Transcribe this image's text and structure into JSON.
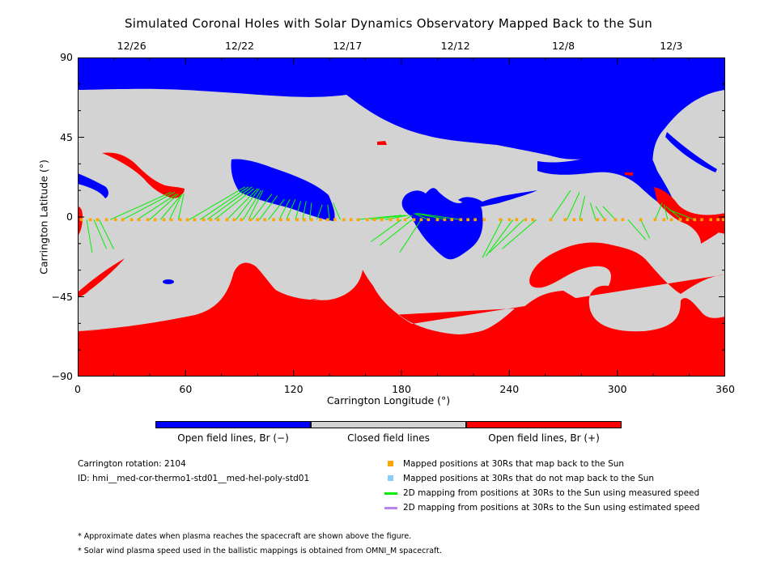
{
  "chart_data": {
    "type": "map",
    "title": "Simulated Coronal Holes with Solar Dynamics Observatory Mapped Back to the Sun",
    "xlabel": "Carrington Longitude (°)",
    "ylabel": "Carrington Latitude (°)",
    "xlim": [
      0,
      360
    ],
    "ylim": [
      -90,
      90
    ],
    "x_ticks": [
      "0",
      "60",
      "120",
      "180",
      "240",
      "300",
      "360"
    ],
    "y_ticks": [
      "90",
      "45",
      "0",
      "−45",
      "−90"
    ],
    "top_dates": [
      {
        "label": "12/26",
        "lon": 30
      },
      {
        "label": "12/22",
        "lon": 90
      },
      {
        "label": "12/17",
        "lon": 150
      },
      {
        "label": "12/12",
        "lon": 210
      },
      {
        "label": "12/8",
        "lon": 270
      },
      {
        "label": "12/3",
        "lon": 330
      }
    ],
    "colorbar": [
      {
        "label": "Open field lines, Br (−)",
        "color": "#0000ff"
      },
      {
        "label": "Closed field lines",
        "color": "#d3d3d3"
      },
      {
        "label": "Open field lines, Br (+)",
        "color": "#ff0000"
      }
    ],
    "mapped_points_lon": [
      2,
      7,
      11,
      16,
      21,
      25,
      30,
      34,
      39,
      43,
      48,
      52,
      57,
      61,
      65,
      70,
      74,
      78,
      83,
      87,
      91,
      96,
      100,
      104,
      109,
      113,
      117,
      122,
      126,
      130,
      135,
      139,
      143,
      148,
      152,
      156,
      161,
      165,
      169,
      174,
      178,
      182,
      187,
      191,
      195,
      200,
      204,
      208,
      213,
      217,
      221,
      226,
      235,
      240,
      244,
      249,
      253,
      263,
      271,
      276,
      280,
      289,
      293,
      299,
      303,
      313,
      321,
      326,
      330,
      335,
      339,
      343,
      347,
      352,
      356,
      359
    ],
    "mapped_points_lat": -1.5,
    "mapping_lines": [
      {
        "from": 5,
        "to": [
          8,
          -20
        ]
      },
      {
        "from": 9,
        "to": [
          16,
          -18
        ]
      },
      {
        "from": 12,
        "to": [
          20,
          -18
        ]
      },
      {
        "from": 18,
        "to": [
          52,
          14
        ]
      },
      {
        "from": 25,
        "to": [
          54,
          14
        ]
      },
      {
        "from": 33,
        "to": [
          55,
          13
        ]
      },
      {
        "from": 40,
        "to": [
          56,
          13
        ]
      },
      {
        "from": 46,
        "to": [
          58,
          13
        ]
      },
      {
        "from": 51,
        "to": [
          58,
          13
        ]
      },
      {
        "from": 56,
        "to": [
          59,
          13
        ]
      },
      {
        "from": 62,
        "to": [
          93,
          17
        ]
      },
      {
        "from": 68,
        "to": [
          95,
          17
        ]
      },
      {
        "from": 72,
        "to": [
          97,
          17
        ]
      },
      {
        "from": 76,
        "to": [
          98,
          16
        ]
      },
      {
        "from": 83,
        "to": [
          100,
          16
        ]
      },
      {
        "from": 88,
        "to": [
          101,
          16
        ]
      },
      {
        "from": 92,
        "to": [
          102,
          15
        ]
      },
      {
        "from": 95,
        "to": [
          103,
          15
        ]
      },
      {
        "from": 97,
        "to": [
          108,
          13
        ]
      },
      {
        "from": 101,
        "to": [
          111,
          12
        ]
      },
      {
        "from": 106,
        "to": [
          115,
          10
        ]
      },
      {
        "from": 112,
        "to": [
          118,
          10
        ]
      },
      {
        "from": 116,
        "to": [
          121,
          10
        ]
      },
      {
        "from": 121,
        "to": [
          124,
          9
        ]
      },
      {
        "from": 125,
        "to": [
          127,
          9
        ]
      },
      {
        "from": 129,
        "to": [
          130,
          8
        ]
      },
      {
        "from": 133,
        "to": [
          136,
          7
        ]
      },
      {
        "from": 140,
        "to": [
          139,
          7
        ]
      },
      {
        "from": 146,
        "to": [
          142,
          8
        ]
      },
      {
        "from": 155,
        "to": [
          180,
          1
        ]
      },
      {
        "from": 163,
        "to": [
          182,
          1
        ]
      },
      {
        "from": 171,
        "to": [
          184,
          1
        ]
      },
      {
        "from": 182,
        "to": [
          186,
          1
        ]
      },
      {
        "from": 195,
        "to": [
          187,
          2
        ]
      },
      {
        "from": 205,
        "to": [
          188,
          2
        ]
      },
      {
        "from": 213,
        "to": [
          189,
          2
        ]
      },
      {
        "from": 180,
        "to": [
          163,
          -14
        ]
      },
      {
        "from": 186,
        "to": [
          168,
          -16
        ]
      },
      {
        "from": 191,
        "to": [
          179,
          -20
        ]
      },
      {
        "from": 236,
        "to": [
          225,
          -23
        ]
      },
      {
        "from": 242,
        "to": [
          227,
          -22
        ]
      },
      {
        "from": 248,
        "to": [
          229,
          -20
        ]
      },
      {
        "from": 255,
        "to": [
          236,
          -18
        ]
      },
      {
        "from": 263,
        "to": [
          274,
          15
        ]
      },
      {
        "from": 272,
        "to": [
          279,
          14
        ]
      },
      {
        "from": 279,
        "to": [
          282,
          12
        ]
      },
      {
        "from": 288,
        "to": [
          285,
          8
        ]
      },
      {
        "from": 293,
        "to": [
          288,
          6
        ]
      },
      {
        "from": 299,
        "to": [
          292,
          6
        ]
      },
      {
        "from": 306,
        "to": [
          316,
          -13
        ]
      },
      {
        "from": 313,
        "to": [
          318,
          -12
        ]
      },
      {
        "from": 321,
        "to": [
          325,
          8
        ]
      },
      {
        "from": 328,
        "to": [
          326,
          7
        ]
      },
      {
        "from": 336,
        "to": [
          327,
          6
        ]
      },
      {
        "from": 343,
        "to": [
          329,
          4
        ]
      }
    ]
  },
  "info": {
    "rotation": "Carrington rotation: 2104",
    "id": "ID: hmi__med-cor-thermo1-std01__med-hel-poly-std01"
  },
  "legend": [
    {
      "label": "Mapped positions at 30Rs that map back to the Sun",
      "color": "#ffa500",
      "marker": "square"
    },
    {
      "label": "Mapped positions at 30Rs that do not map back to the Sun",
      "color": "#87cefa",
      "marker": "square"
    },
    {
      "label": "2D mapping from positions at 30Rs to the Sun using measured speed",
      "color": "#00ee00",
      "marker": "line"
    },
    {
      "label": "2D mapping from positions at 30Rs to the Sun using estimated speed",
      "color": "#b784f0",
      "marker": "line"
    }
  ],
  "notes": [
    "* Approximate dates when plasma reaches the spacecraft are shown above the figure.",
    "* Solar wind plasma speed used in the ballistic mappings is obtained from OMNI_M spacecraft."
  ]
}
